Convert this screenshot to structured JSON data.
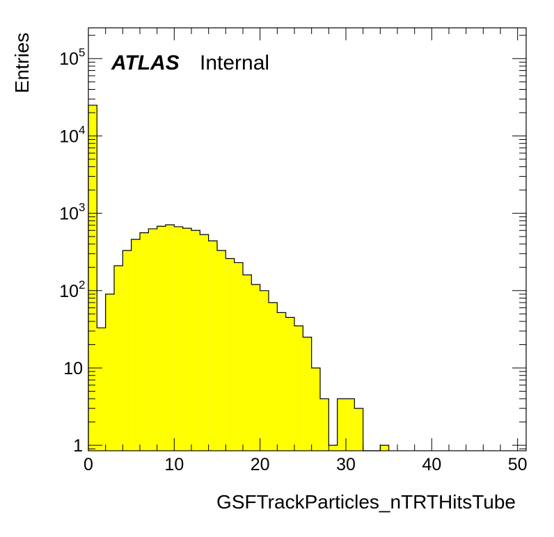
{
  "chart_data": {
    "type": "bar",
    "histogram": true,
    "x_axis": {
      "label": "GSFTrackParticles_nTRTHitsTube",
      "range": [
        0,
        51
      ],
      "tick_labels": [
        "0",
        "10",
        "20",
        "30",
        "40",
        "50"
      ]
    },
    "y_axis": {
      "label": "Entries",
      "scale": "log",
      "range": [
        0.85,
        250000
      ],
      "tick_labels": [
        "1",
        "10",
        "10",
        "10",
        "10",
        "10"
      ],
      "tick_exponents": [
        "",
        "",
        "2",
        "3",
        "4",
        "5"
      ]
    },
    "annotation": {
      "experiment": "ATLAS",
      "status": "Internal"
    },
    "fill_color": "#ffff00",
    "line_color": "#000000",
    "bin_edges_start": 0,
    "bin_width": 1,
    "values": [
      25000,
      33,
      90,
      210,
      330,
      460,
      560,
      630,
      680,
      710,
      670,
      640,
      600,
      530,
      440,
      330,
      260,
      230,
      160,
      120,
      100,
      70,
      52,
      45,
      35,
      25,
      10,
      4,
      1,
      4,
      4,
      3,
      0,
      0,
      1
    ]
  }
}
